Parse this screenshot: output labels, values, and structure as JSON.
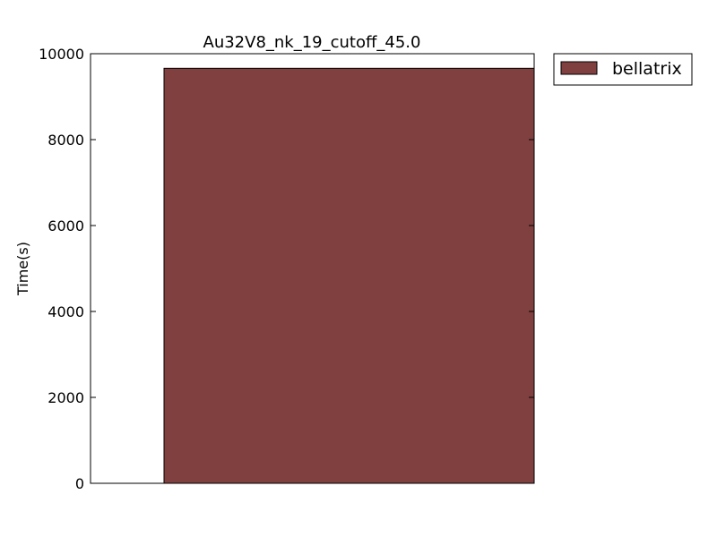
{
  "chart_data": {
    "type": "bar",
    "title": "Au32V8_nk_19_cutoff_45.0",
    "xlabel": "",
    "ylabel": "Time(s)",
    "ylim": [
      0,
      10000
    ],
    "yticks": [
      0,
      2000,
      4000,
      6000,
      8000,
      10000
    ],
    "series": [
      {
        "name": "bellatrix",
        "values": [
          9660
        ],
        "color": "#804040"
      }
    ],
    "grid": false,
    "legend": "outside-top-right"
  }
}
